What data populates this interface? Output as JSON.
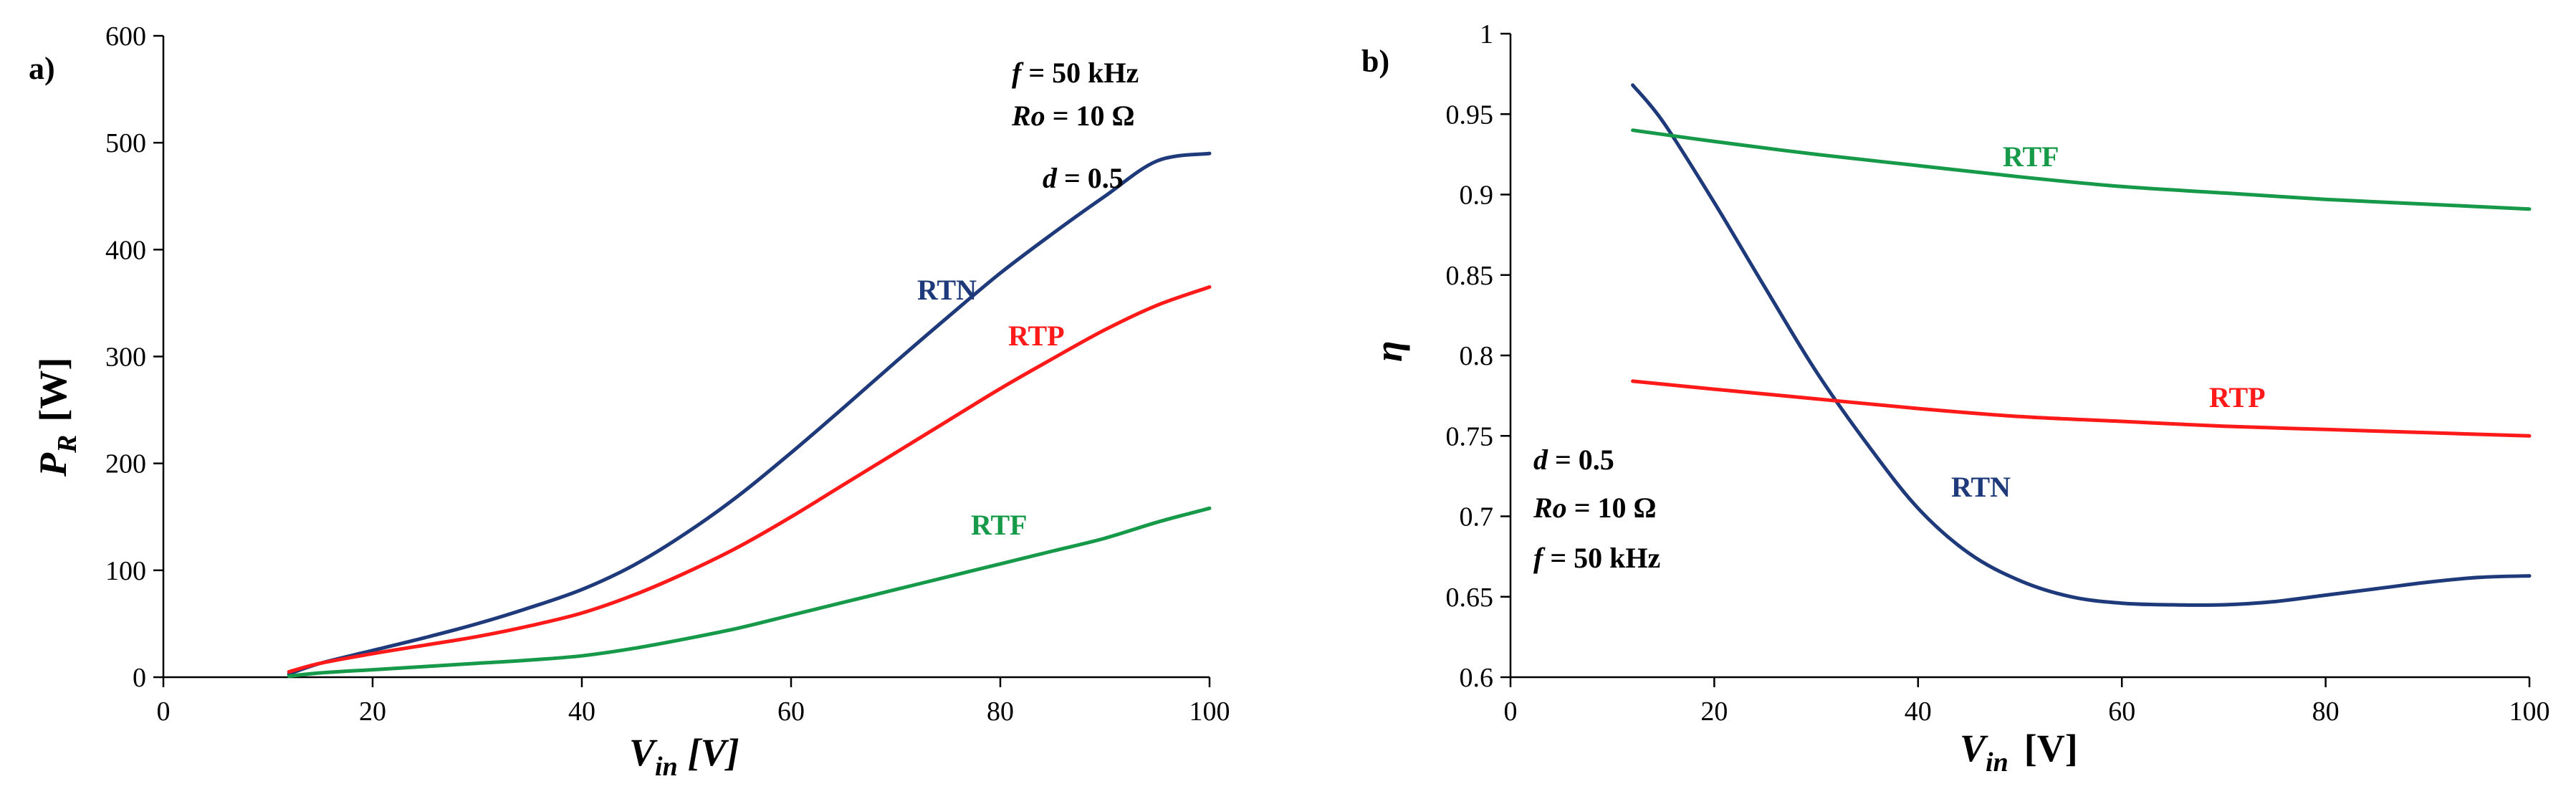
{
  "colors": {
    "RTN": "#1f3a7a",
    "RTP": "#ff1a1a",
    "RTF": "#17994a"
  },
  "chart_data": [
    {
      "type": "line",
      "panel": "a)",
      "ylabel_main": "P",
      "ylabel_sub": "R",
      "ylabel_unit": "[W]",
      "xlabel_main": "V",
      "xlabel_sub": "in",
      "xlabel_unit": "[V]",
      "xlim": [
        0,
        100
      ],
      "ylim": [
        0,
        600
      ],
      "xticks": [
        "0",
        "20",
        "40",
        "60",
        "80",
        "100"
      ],
      "yticks": [
        "0",
        "100",
        "200",
        "300",
        "400",
        "500",
        "600"
      ],
      "grid": false,
      "annotations": [
        {
          "var": "f",
          "rest": " = 50 kHz"
        },
        {
          "var": "Ro",
          "rest": " = 10 Ω"
        },
        {
          "var": "d",
          "rest": " = 0.5"
        }
      ],
      "series": [
        {
          "name": "RTN",
          "label": "RTN",
          "x": [
            12,
            15,
            20,
            25,
            30,
            35,
            40,
            45,
            50,
            55,
            60,
            65,
            70,
            75,
            80,
            85,
            90,
            95,
            100
          ],
          "values": [
            3,
            13,
            25,
            37,
            50,
            65,
            82,
            105,
            135,
            170,
            210,
            252,
            295,
            337,
            378,
            415,
            450,
            483,
            490
          ]
        },
        {
          "name": "RTP",
          "label": "RTP",
          "x": [
            12,
            15,
            20,
            25,
            30,
            35,
            40,
            45,
            50,
            55,
            60,
            65,
            70,
            75,
            80,
            85,
            90,
            95,
            100
          ],
          "values": [
            5,
            13,
            22,
            30,
            38,
            48,
            60,
            77,
            98,
            122,
            150,
            180,
            210,
            240,
            270,
            298,
            325,
            348,
            365
          ]
        },
        {
          "name": "RTF",
          "label": "RTF",
          "x": [
            12,
            15,
            20,
            25,
            30,
            35,
            40,
            45,
            50,
            55,
            60,
            65,
            70,
            75,
            80,
            85,
            90,
            95,
            100
          ],
          "values": [
            1,
            4,
            7,
            10,
            13,
            16,
            20,
            27,
            36,
            46,
            58,
            70,
            82,
            94,
            106,
            118,
            130,
            145,
            158
          ]
        }
      ]
    },
    {
      "type": "line",
      "panel": "b)",
      "ylabel_main": "η",
      "xlabel_main": "V",
      "xlabel_sub": "in",
      "xlabel_unit": "[V]",
      "xlim": [
        0,
        100
      ],
      "ylim": [
        0.6,
        1.0
      ],
      "xticks": [
        "0",
        "20",
        "40",
        "60",
        "80",
        "100"
      ],
      "yticks": [
        "0.6",
        "0.65",
        "0.7",
        "0.75",
        "0.8",
        "0.85",
        "0.9",
        "0.95",
        "1"
      ],
      "grid": false,
      "annotations": [
        {
          "var": "d",
          "rest": " = 0.5"
        },
        {
          "var": "Ro",
          "rest": " = 10 Ω"
        },
        {
          "var": "f",
          "rest": " = 50 kHz"
        }
      ],
      "series": [
        {
          "name": "RTN",
          "label": "RTN",
          "x": [
            12,
            15,
            20,
            25,
            30,
            35,
            40,
            45,
            50,
            55,
            60,
            65,
            70,
            75,
            80,
            85,
            90,
            95,
            100
          ],
          "values": [
            0.968,
            0.945,
            0.895,
            0.842,
            0.79,
            0.745,
            0.705,
            0.677,
            0.66,
            0.65,
            0.646,
            0.645,
            0.645,
            0.647,
            0.651,
            0.655,
            0.659,
            0.662,
            0.663
          ]
        },
        {
          "name": "RTP",
          "label": "RTP",
          "x": [
            12,
            20,
            30,
            40,
            50,
            60,
            70,
            80,
            90,
            100
          ],
          "values": [
            0.784,
            0.779,
            0.773,
            0.767,
            0.762,
            0.759,
            0.756,
            0.754,
            0.752,
            0.75
          ]
        },
        {
          "name": "RTF",
          "label": "RTF",
          "x": [
            12,
            20,
            30,
            40,
            50,
            60,
            70,
            80,
            90,
            100
          ],
          "values": [
            0.94,
            0.933,
            0.925,
            0.918,
            0.911,
            0.905,
            0.901,
            0.897,
            0.894,
            0.891
          ]
        }
      ]
    }
  ]
}
